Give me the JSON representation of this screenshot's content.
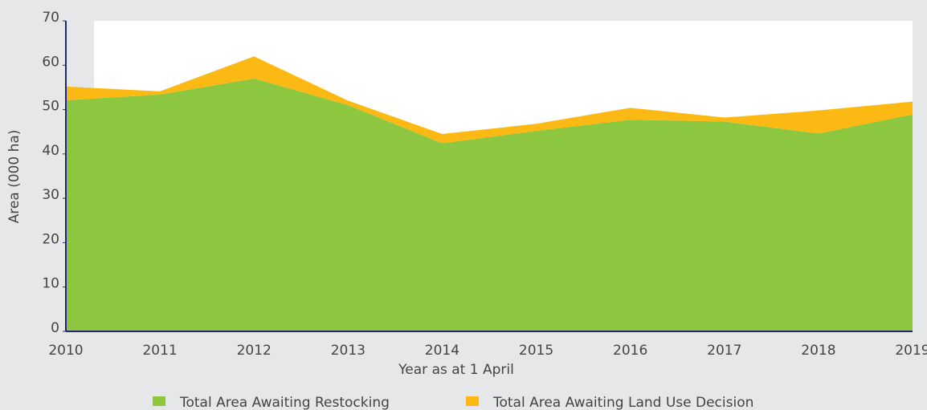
{
  "chart_data": {
    "type": "stacked_area",
    "x_label": "Year as at 1 April",
    "y_label": "Area (000 ha)",
    "categories": [
      "2010",
      "2011",
      "2012",
      "2013",
      "2014",
      "2015",
      "2016",
      "2017",
      "2018",
      "2019"
    ],
    "series": [
      {
        "name": "Total Area Awaiting Restocking",
        "color": "#8dc63f",
        "values": [
          52.1,
          53.4,
          57,
          51,
          42.4,
          45.2,
          47.7,
          47.3,
          44.6,
          48.9
        ]
      },
      {
        "name": "Total Area Awaiting Land Use Decision",
        "color": "#fdb913",
        "values": [
          3.1,
          0.7,
          5,
          1,
          2.1,
          1.6,
          2.7,
          0.9,
          5.2,
          2.9
        ]
      }
    ],
    "ylim": [
      0,
      70
    ],
    "yticks": [
      0,
      10,
      20,
      30,
      40,
      50,
      60,
      70
    ]
  }
}
